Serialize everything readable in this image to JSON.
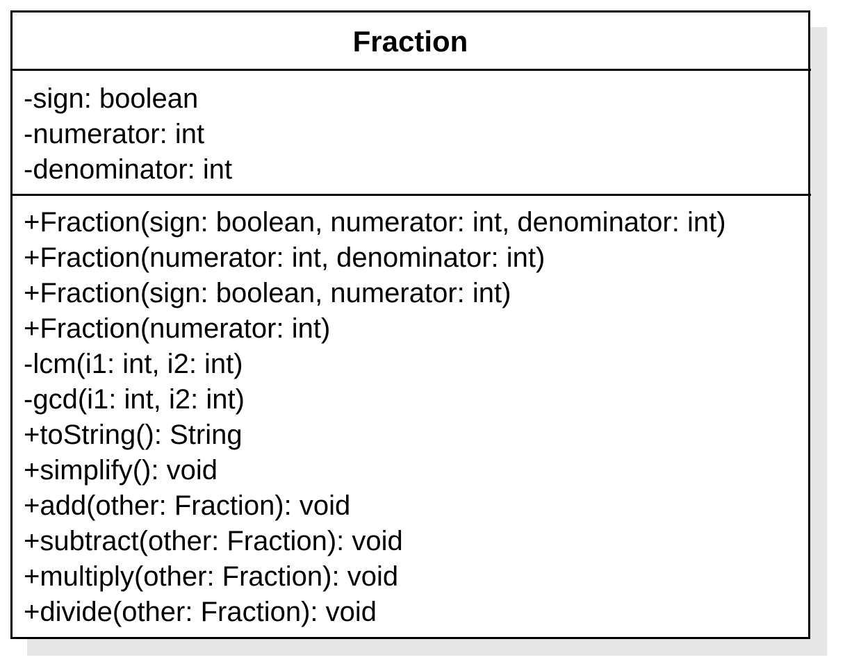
{
  "class": {
    "name": "Fraction",
    "attributes": [
      "-sign: boolean",
      "-numerator: int",
      "-denominator: int"
    ],
    "methods": [
      "+Fraction(sign: boolean, numerator: int, denominator: int)",
      "+Fraction(numerator: int, denominator: int)",
      "+Fraction(sign: boolean, numerator: int)",
      "+Fraction(numerator: int)",
      "-lcm(i1: int, i2: int)",
      "-gcd(i1: int, i2: int)",
      "+toString(): String",
      "+simplify(): void",
      "+add(other: Fraction): void",
      "+subtract(other: Fraction): void",
      "+multiply(other: Fraction): void",
      "+divide(other: Fraction): void"
    ]
  },
  "colors": {
    "border": "#000000",
    "shadow": "#e6e6e6",
    "background": "#ffffff"
  }
}
